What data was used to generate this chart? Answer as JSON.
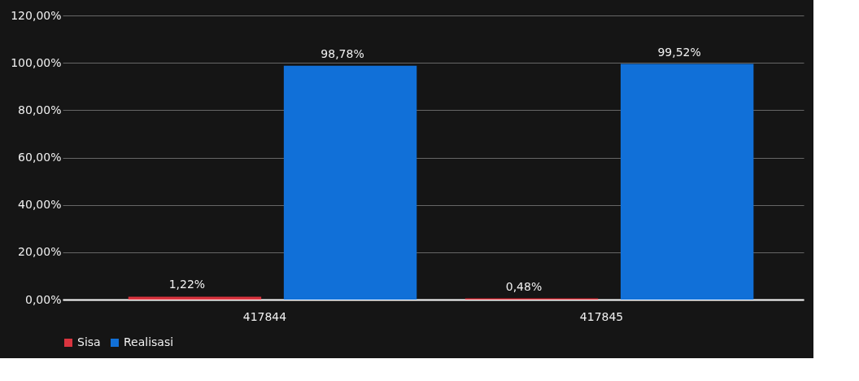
{
  "chart_data": {
    "type": "bar",
    "categories": [
      "417844",
      "417845"
    ],
    "series": [
      {
        "name": "Sisa",
        "color": "#d9343f",
        "values": [
          1.22,
          0.48
        ],
        "value_labels": [
          "1,22%",
          "0,48%"
        ]
      },
      {
        "name": "Realisasi",
        "color": "#1170d8",
        "values": [
          98.78,
          99.52
        ],
        "value_labels": [
          "98,78%",
          "99,52%"
        ]
      }
    ],
    "ylim": [
      0,
      120
    ],
    "yticks": [
      {
        "value": 0,
        "label": "0,00%"
      },
      {
        "value": 20,
        "label": "20,00%"
      },
      {
        "value": 40,
        "label": "40,00%"
      },
      {
        "value": 60,
        "label": "60,00%"
      },
      {
        "value": 80,
        "label": "80,00%"
      },
      {
        "value": 100,
        "label": "100,00%"
      },
      {
        "value": 120,
        "label": "120,00%"
      }
    ],
    "grid": "y",
    "legend": "bottom"
  }
}
